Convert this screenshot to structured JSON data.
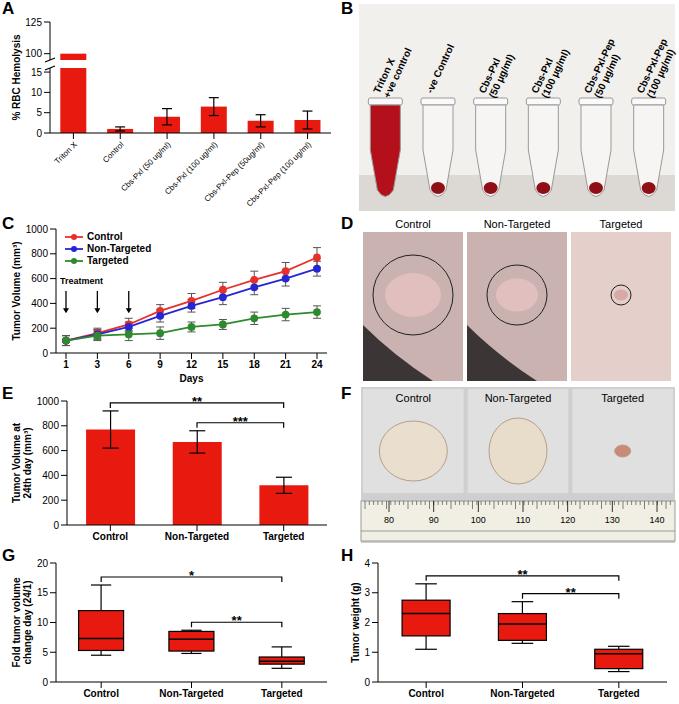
{
  "chart_data": [
    {
      "panel": "A",
      "type": "bar",
      "ylabel": "% RBC Hemolysis",
      "categories": [
        "Triton X",
        "Control",
        "Cbs-Pxl (50 ug/ml)",
        "Cbs-Pxl (100 ug/ml)",
        "Cbs-Pxl-Pep (50ug/ml)",
        "Cbs-Pxl-Pep (100 ug/ml)"
      ],
      "values": [
        100,
        1,
        4,
        6.5,
        3,
        3.2
      ],
      "errors": [
        0,
        0.5,
        2,
        2.2,
        1.5,
        2.2
      ],
      "color": "#e8190f",
      "ylim": [
        0,
        125
      ],
      "ybreak": [
        16,
        95
      ],
      "yticks": [
        0,
        5,
        10,
        15,
        100,
        125
      ]
    },
    {
      "panel": "B",
      "type": "image",
      "tubes": [
        [
          "Triton X",
          "+ve control"
        ],
        [
          "-ve Control"
        ],
        [
          "Cbs-Pxl",
          "(50 µg/ml)"
        ],
        [
          "Cbs-Pxl",
          "(100 µg/ml)"
        ],
        [
          "Cbs-Pxl-Pep",
          "(50 µg/ml)"
        ],
        [
          "Cbs-Pxl-Pep",
          "(100 µg/ml)"
        ]
      ]
    },
    {
      "panel": "C",
      "type": "line",
      "ylabel": "Tumor Volume (mm³)",
      "xlabel": "Days",
      "categories": [
        1,
        3,
        6,
        9,
        12,
        15,
        18,
        21,
        24
      ],
      "series": [
        {
          "name": "Control",
          "color": "#e8302a",
          "values": [
            100,
            160,
            230,
            340,
            420,
            510,
            590,
            660,
            770
          ],
          "errors": [
            40,
            40,
            50,
            50,
            60,
            60,
            70,
            70,
            80
          ]
        },
        {
          "name": "Non-Targeted",
          "color": "#2626d4",
          "values": [
            100,
            150,
            210,
            300,
            380,
            450,
            530,
            600,
            680
          ],
          "errors": [
            40,
            40,
            40,
            50,
            50,
            60,
            60,
            60,
            60
          ]
        },
        {
          "name": "Targeted",
          "color": "#2d8a2d",
          "values": [
            100,
            140,
            150,
            160,
            210,
            230,
            280,
            310,
            330
          ],
          "errors": [
            40,
            40,
            50,
            50,
            40,
            40,
            50,
            50,
            50
          ]
        }
      ],
      "ylim": [
        0,
        1000
      ],
      "yticks": [
        0,
        200,
        400,
        600,
        800,
        1000
      ],
      "legend": "upper left",
      "marker": "circle",
      "annotation": {
        "text": "Treatment",
        "x": [
          1,
          3,
          6
        ]
      }
    },
    {
      "panel": "D",
      "type": "image",
      "labels": [
        "Control",
        "Non-Targeted",
        "Targeted"
      ]
    },
    {
      "panel": "E",
      "type": "bar",
      "ylabel": "Tumor Volume at 24th day (mm³)",
      "categories": [
        "Control",
        "Non-Targeted",
        "Targeted"
      ],
      "values": [
        770,
        670,
        320
      ],
      "errors": [
        150,
        90,
        65
      ],
      "color": "#e8190f",
      "ylim": [
        0,
        1000
      ],
      "yticks": [
        0,
        200,
        400,
        600,
        800,
        1000
      ],
      "annotations": [
        {
          "from": "Control",
          "to": "Targeted",
          "text": "**"
        },
        {
          "from": "Non-Targeted",
          "to": "Targeted",
          "text": "***"
        }
      ]
    },
    {
      "panel": "F",
      "type": "image",
      "labels": [
        "Control",
        "Non-Targeted",
        "Targeted"
      ],
      "ruler": [
        80,
        90,
        100,
        110,
        120,
        130,
        140
      ]
    },
    {
      "panel": "G",
      "type": "box",
      "ylabel": "Fold tumor volume change day (24/1)",
      "categories": [
        "Control",
        "Non-Targeted",
        "Targeted"
      ],
      "boxes": [
        {
          "min": 4.5,
          "q1": 5.3,
          "median": 7.3,
          "q3": 12,
          "max": 16.3
        },
        {
          "min": 4.8,
          "q1": 5.2,
          "median": 7.2,
          "q3": 8.5,
          "max": 8.7
        },
        {
          "min": 2.3,
          "q1": 3,
          "median": 3.5,
          "q3": 4.2,
          "max": 5.9
        }
      ],
      "color": "#e8190f",
      "ylim": [
        0,
        20
      ],
      "yticks": [
        0,
        5,
        10,
        15,
        20
      ],
      "annotations": [
        {
          "from": "Control",
          "to": "Targeted",
          "text": "*"
        },
        {
          "from": "Non-Targeted",
          "to": "Targeted",
          "text": "**"
        }
      ]
    },
    {
      "panel": "H",
      "type": "box",
      "ylabel": "Tumor weight (g)",
      "categories": [
        "Control",
        "Non-Targeted",
        "Targeted"
      ],
      "boxes": [
        {
          "min": 1.1,
          "q1": 1.55,
          "median": 2.3,
          "q3": 2.75,
          "max": 3.3
        },
        {
          "min": 1.3,
          "q1": 1.4,
          "median": 1.95,
          "q3": 2.3,
          "max": 2.7
        },
        {
          "min": 0.35,
          "q1": 0.45,
          "median": 0.95,
          "q3": 1.1,
          "max": 1.2
        }
      ],
      "color": "#e8190f",
      "ylim": [
        0,
        4
      ],
      "yticks": [
        0,
        1,
        2,
        3,
        4
      ],
      "annotations": [
        {
          "from": "Control",
          "to": "Targeted",
          "text": "**"
        },
        {
          "from": "Non-Targeted",
          "to": "Targeted",
          "text": "**"
        }
      ]
    }
  ]
}
